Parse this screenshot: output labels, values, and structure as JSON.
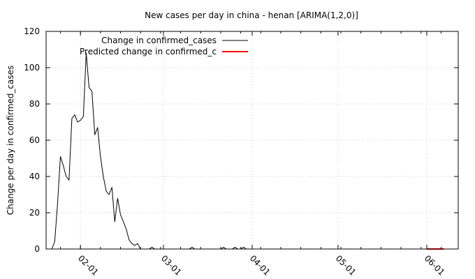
{
  "chart_data": {
    "type": "line",
    "title": "New cases per day in china - henan [ARIMA(1,2,0)]",
    "ylabel": "Change per day in confirmed_cases",
    "xlabel": "",
    "ylim": [
      0,
      120
    ],
    "yticks": [
      "0",
      "20",
      "40",
      "60",
      "80",
      "100",
      "120"
    ],
    "xlim": [
      "2020-01-20",
      "2020-06-12"
    ],
    "xticks": [
      {
        "date": "2020-02-01",
        "label": "02-01"
      },
      {
        "date": "2020-03-01",
        "label": "03-01"
      },
      {
        "date": "2020-04-01",
        "label": "04-01"
      },
      {
        "date": "2020-05-01",
        "label": "05-01"
      },
      {
        "date": "2020-06-01",
        "label": "06-01"
      }
    ],
    "grid": true,
    "legend_position": "top-left",
    "series": [
      {
        "name": "Change in confirmed_cases",
        "color": "#000000",
        "x": [
          "2020-01-22",
          "2020-01-23",
          "2020-01-24",
          "2020-01-25",
          "2020-01-26",
          "2020-01-27",
          "2020-01-28",
          "2020-01-29",
          "2020-01-30",
          "2020-01-31",
          "2020-02-01",
          "2020-02-02",
          "2020-02-03",
          "2020-02-04",
          "2020-02-05",
          "2020-02-06",
          "2020-02-07",
          "2020-02-08",
          "2020-02-09",
          "2020-02-10",
          "2020-02-11",
          "2020-02-12",
          "2020-02-13",
          "2020-02-14",
          "2020-02-15",
          "2020-02-16",
          "2020-02-17",
          "2020-02-18",
          "2020-02-19",
          "2020-02-20",
          "2020-02-21",
          "2020-02-22",
          "2020-02-23",
          "2020-02-24",
          "2020-02-25",
          "2020-02-26",
          "2020-02-27",
          "2020-02-28",
          "2020-02-29",
          "2020-03-01",
          "2020-03-02",
          "2020-03-03",
          "2020-03-10",
          "2020-03-11",
          "2020-03-12",
          "2020-03-21",
          "2020-03-22",
          "2020-03-23",
          "2020-03-25",
          "2020-03-26",
          "2020-03-27",
          "2020-03-28",
          "2020-03-29",
          "2020-03-30",
          "2020-04-01",
          "2020-06-09"
        ],
        "values": [
          0,
          4,
          25,
          51,
          46,
          40,
          38,
          72,
          74,
          70,
          71,
          73,
          108,
          89,
          87,
          63,
          67,
          51,
          40,
          32,
          30,
          34,
          15,
          28,
          19,
          15,
          11,
          5,
          3,
          2,
          3,
          0,
          0,
          0,
          0,
          1,
          0,
          0,
          0,
          0,
          0,
          0,
          0,
          1,
          0,
          0,
          1,
          0,
          0,
          1,
          0,
          0,
          1,
          0,
          0,
          0
        ]
      },
      {
        "name": "Predicted change in confirmed_c",
        "color": "#ff0000",
        "x": [
          "2020-06-01",
          "2020-06-07"
        ],
        "values": [
          0,
          0
        ]
      }
    ]
  }
}
